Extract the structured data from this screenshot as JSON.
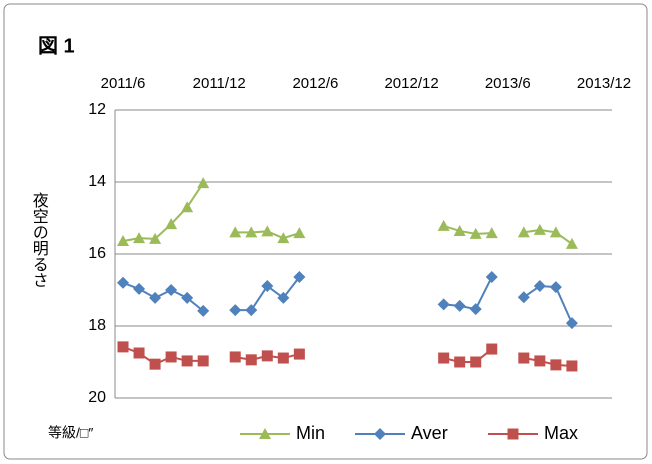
{
  "chart_data": {
    "type": "line",
    "title": "図 1",
    "y_label": "夜空の明るさ",
    "note": "等級/□″",
    "categories": [
      "2011/6",
      null,
      null,
      null,
      null,
      null,
      "2011/12",
      null,
      null,
      null,
      null,
      null,
      "2012/6",
      null,
      null,
      null,
      null,
      null,
      "2012/12",
      null,
      null,
      null,
      null,
      null,
      "2013/6",
      null,
      null,
      null,
      null,
      null,
      "2013/12"
    ],
    "series": [
      {
        "name": "Min",
        "color": "#9bbb59",
        "marker": "triangle",
        "values": [
          15.64,
          15.56,
          15.58,
          15.17,
          14.7,
          14.03,
          null,
          15.4,
          15.4,
          15.37,
          15.56,
          15.42,
          null,
          null,
          null,
          null,
          null,
          null,
          null,
          null,
          15.22,
          15.36,
          15.44,
          15.42,
          null,
          15.4,
          15.33,
          15.4,
          15.72,
          null,
          null
        ]
      },
      {
        "name": "Aver",
        "color": "#4f81bd",
        "marker": "diamond",
        "values": [
          16.8,
          16.97,
          17.22,
          17.0,
          17.22,
          17.58,
          null,
          17.56,
          17.56,
          16.89,
          17.22,
          16.64,
          null,
          null,
          null,
          null,
          null,
          null,
          null,
          null,
          17.4,
          17.44,
          17.53,
          16.64,
          null,
          17.2,
          16.89,
          16.92,
          17.92,
          null,
          null
        ]
      },
      {
        "name": "Max",
        "color": "#c0504d",
        "marker": "square",
        "values": [
          18.58,
          18.75,
          19.06,
          18.86,
          18.97,
          18.97,
          null,
          18.86,
          18.94,
          18.83,
          18.89,
          18.78,
          null,
          null,
          null,
          null,
          null,
          null,
          null,
          null,
          18.89,
          19.0,
          19.0,
          18.64,
          null,
          18.89,
          18.97,
          19.08,
          19.11,
          null,
          null
        ]
      }
    ],
    "ylim": [
      12,
      20
    ],
    "yticks": [
      12,
      14,
      16,
      18,
      20
    ],
    "y_inverted": true,
    "grid": true,
    "legend": "bottom"
  }
}
